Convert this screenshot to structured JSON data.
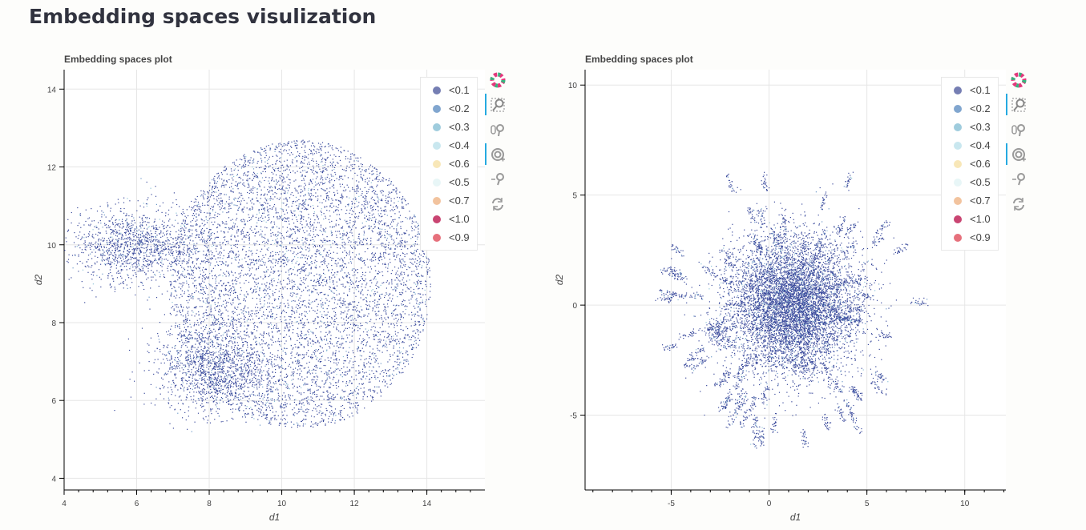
{
  "page_title": "Embedding spaces visulization",
  "toolbar": [
    "bokeh-logo-icon",
    "box-zoom-icon",
    "wheel-pan-icon",
    "wheel-zoom-icon",
    "zoom-out-icon",
    "reset-icon"
  ],
  "legend": [
    {
      "label": "<0.1",
      "color": "#5d67a6"
    },
    {
      "label": "<0.2",
      "color": "#6b97c7"
    },
    {
      "label": "<0.3",
      "color": "#8ec3d7"
    },
    {
      "label": "<0.4",
      "color": "#bfe3ec"
    },
    {
      "label": "<0.6",
      "color": "#f7e3ab"
    },
    {
      "label": "<0.5",
      "color": "#e4f4f6"
    },
    {
      "label": "<0.7",
      "color": "#f0b88d"
    },
    {
      "label": "<1.0",
      "color": "#c02559"
    },
    {
      "label": "<0.9",
      "color": "#e25765"
    }
  ],
  "chart_data": [
    {
      "type": "scatter",
      "title": "Embedding spaces plot",
      "xlabel": "d1",
      "ylabel": "d2",
      "xlim": [
        4,
        15.6
      ],
      "ylim": [
        3.7,
        14.5
      ],
      "xticks": [
        4,
        6,
        8,
        10,
        12,
        14
      ],
      "yticks": [
        4,
        6,
        8,
        10,
        12,
        14
      ],
      "grid": true,
      "legend_position": "top-right",
      "point_color": "#3a4a9c"
    },
    {
      "type": "scatter",
      "title": "Embedding spaces plot",
      "xlabel": "d1",
      "ylabel": "d2",
      "xlim": [
        -9.4,
        12.1
      ],
      "ylim": [
        -8.4,
        10.7
      ],
      "xticks": [
        -5,
        0,
        5,
        10
      ],
      "yticks": [
        -5,
        0,
        5,
        10
      ],
      "grid": true,
      "legend_position": "top-right",
      "point_color": "#3a4a9c"
    }
  ]
}
